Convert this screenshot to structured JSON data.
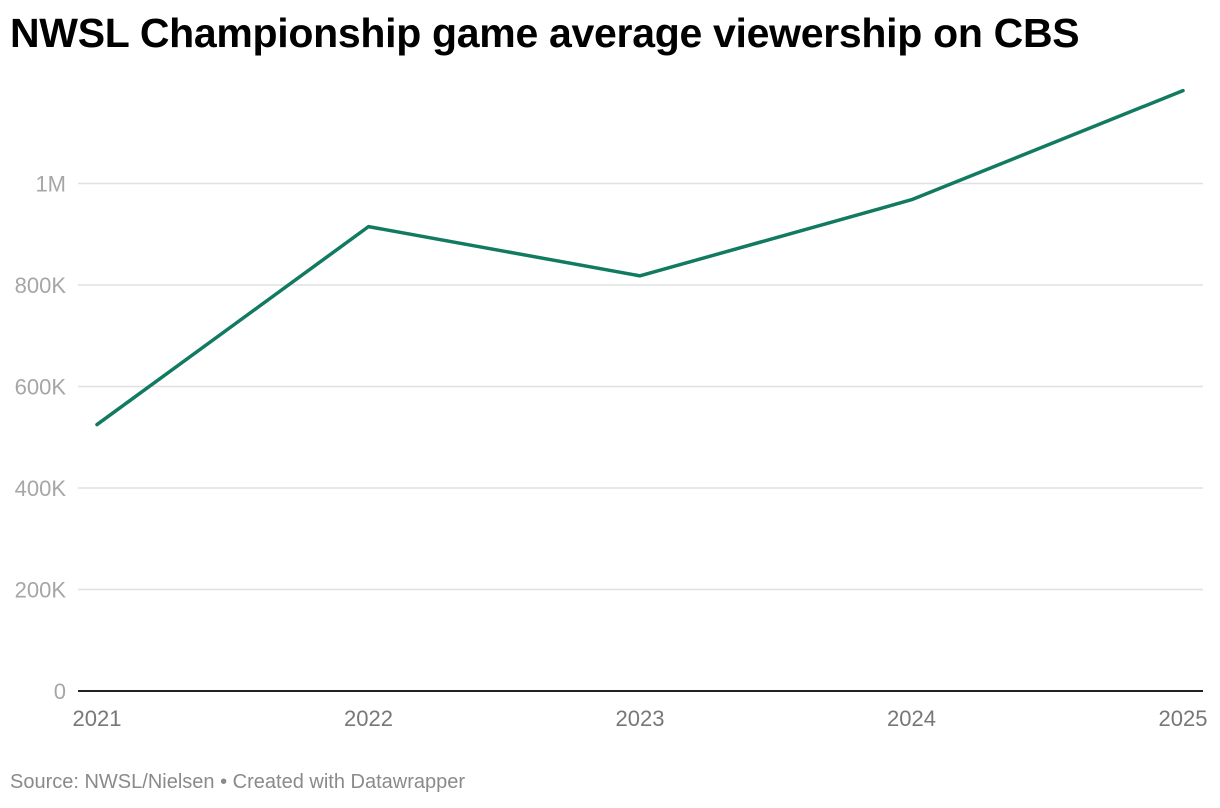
{
  "chart_data": {
    "type": "line",
    "title": "NWSL Championship game average viewership on CBS",
    "x": [
      "2021",
      "2022",
      "2023",
      "2024",
      "2025"
    ],
    "series": [
      {
        "values": [
          525000,
          915000,
          818000,
          968000,
          1183000
        ]
      }
    ],
    "ylim": [
      0,
      1200000
    ],
    "yticks": [
      0,
      200000,
      400000,
      600000,
      800000,
      1000000
    ],
    "ytick_labels": [
      "0",
      "200K",
      "400K",
      "600K",
      "800K",
      "1M"
    ],
    "grid": true,
    "line_color": "#117a61",
    "grid_color": "#e0e0e0",
    "axis_color": "#222222"
  },
  "footer": {
    "source_label": "Source: NWSL/Nielsen",
    "separator": "•",
    "credit": "Created with Datawrapper"
  }
}
